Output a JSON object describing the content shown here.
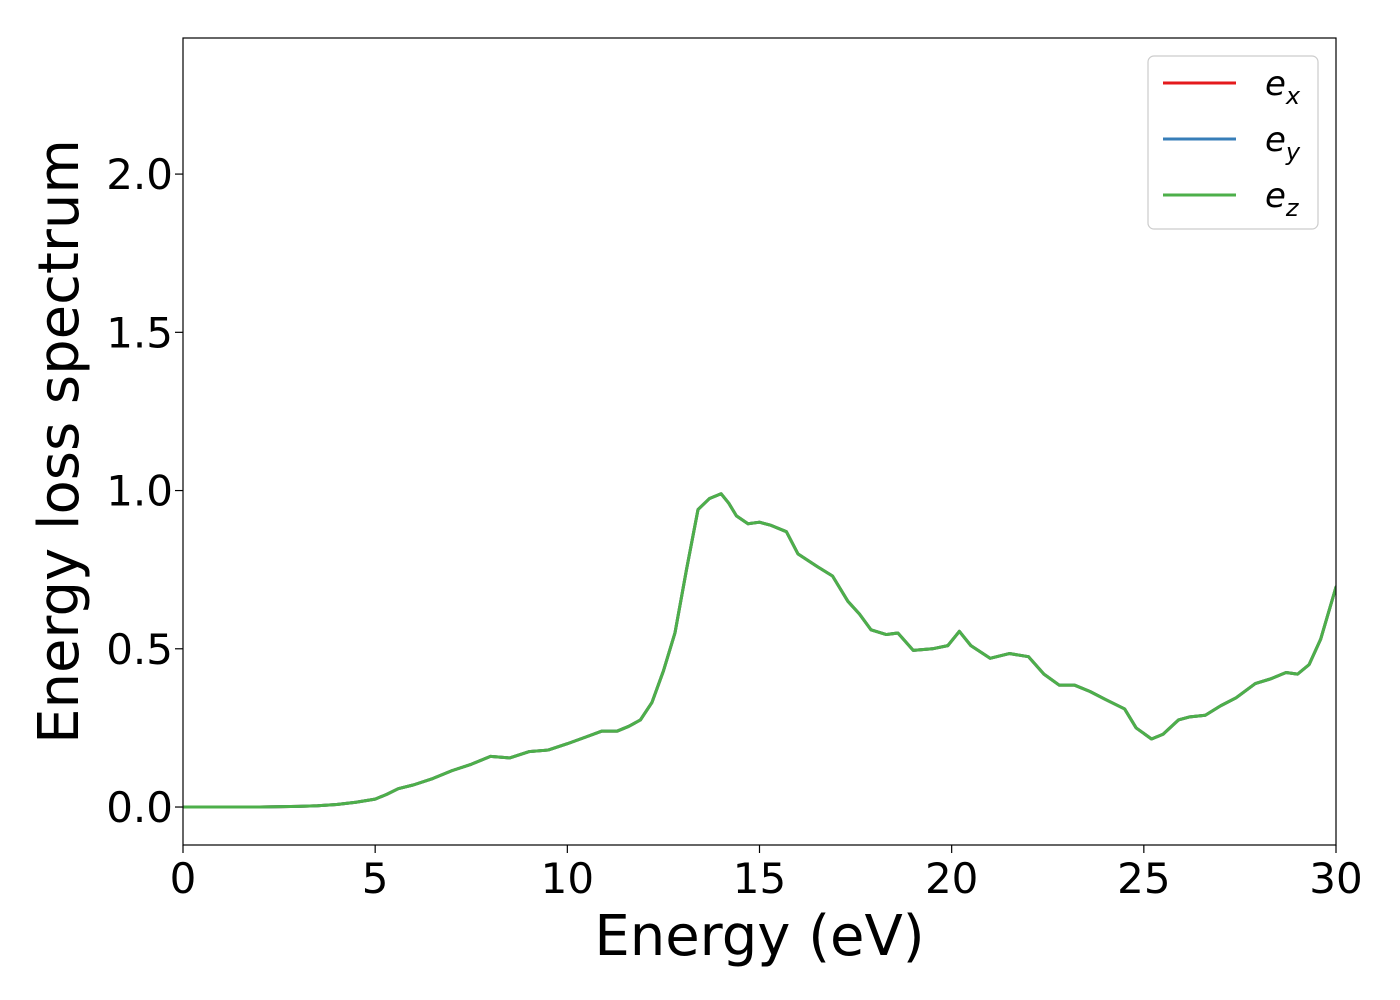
{
  "chart_data": {
    "type": "line",
    "title": "",
    "xlabel": "Energy (eV)",
    "ylabel": "Energy loss spectrum",
    "xlim": [
      0,
      30
    ],
    "ylim": [
      -0.12,
      2.43
    ],
    "xticks": [
      0,
      5,
      10,
      15,
      20,
      25,
      30
    ],
    "xtick_labels": [
      "0",
      "5",
      "10",
      "15",
      "20",
      "25",
      "30"
    ],
    "yticks": [
      0.0,
      0.5,
      1.0,
      1.5,
      2.0
    ],
    "ytick_labels": [
      "0.0",
      "0.5",
      "1.0",
      "1.5",
      "2.0"
    ],
    "grid": false,
    "legend_position": "top-right",
    "x": [
      0,
      1,
      2,
      3,
      3.5,
      4,
      4.5,
      5,
      5.3,
      5.6,
      6,
      6.5,
      7,
      7.5,
      8,
      8.5,
      9,
      9.5,
      10,
      10.5,
      10.9,
      11.3,
      11.6,
      11.9,
      12.2,
      12.5,
      12.8,
      13.1,
      13.4,
      13.7,
      14.0,
      14.2,
      14.4,
      14.7,
      15.0,
      15.3,
      15.7,
      16.0,
      16.5,
      16.9,
      17.3,
      17.6,
      17.9,
      18.3,
      18.6,
      19.0,
      19.5,
      19.9,
      20.2,
      20.5,
      21.0,
      21.5,
      22.0,
      22.4,
      22.8,
      23.2,
      23.6,
      24.0,
      24.5,
      24.8,
      25.2,
      25.5,
      25.9,
      26.2,
      26.6,
      27.0,
      27.4,
      27.9,
      28.3,
      28.7,
      29.0,
      29.3,
      29.6,
      30.0
    ],
    "series": [
      {
        "name": "e_x",
        "label_base": "e",
        "label_sub": "x",
        "color": "#e41a1c",
        "y": [
          0.0,
          0.0,
          0.0,
          0.002,
          0.004,
          0.008,
          0.015,
          0.025,
          0.04,
          0.058,
          0.07,
          0.09,
          0.115,
          0.135,
          0.16,
          0.155,
          0.175,
          0.18,
          0.2,
          0.222,
          0.24,
          0.24,
          0.255,
          0.275,
          0.33,
          0.43,
          0.55,
          0.75,
          0.94,
          0.975,
          0.99,
          0.96,
          0.92,
          0.895,
          0.9,
          0.89,
          0.87,
          0.8,
          0.76,
          0.73,
          0.65,
          0.61,
          0.56,
          0.545,
          0.55,
          0.495,
          0.5,
          0.51,
          0.555,
          0.51,
          0.47,
          0.485,
          0.475,
          0.42,
          0.385,
          0.385,
          0.365,
          0.34,
          0.31,
          0.25,
          0.215,
          0.23,
          0.275,
          0.285,
          0.29,
          0.32,
          0.345,
          0.39,
          0.405,
          0.425,
          0.42,
          0.45,
          0.53,
          0.695
        ]
      },
      {
        "name": "e_y",
        "label_base": "e",
        "label_sub": "y",
        "color": "#377eb8",
        "y": [
          0.0,
          0.0,
          0.0,
          0.002,
          0.004,
          0.008,
          0.015,
          0.025,
          0.04,
          0.058,
          0.07,
          0.09,
          0.115,
          0.135,
          0.16,
          0.155,
          0.175,
          0.18,
          0.2,
          0.222,
          0.24,
          0.24,
          0.255,
          0.275,
          0.33,
          0.43,
          0.55,
          0.75,
          0.94,
          0.975,
          0.99,
          0.96,
          0.92,
          0.895,
          0.9,
          0.89,
          0.87,
          0.8,
          0.76,
          0.73,
          0.65,
          0.61,
          0.56,
          0.545,
          0.55,
          0.495,
          0.5,
          0.51,
          0.555,
          0.51,
          0.47,
          0.485,
          0.475,
          0.42,
          0.385,
          0.385,
          0.365,
          0.34,
          0.31,
          0.25,
          0.215,
          0.23,
          0.275,
          0.285,
          0.29,
          0.32,
          0.345,
          0.39,
          0.405,
          0.425,
          0.42,
          0.45,
          0.53,
          0.695
        ]
      },
      {
        "name": "e_z",
        "label_base": "e",
        "label_sub": "z",
        "color": "#4daf4a",
        "y": [
          0.0,
          0.0,
          0.0,
          0.002,
          0.004,
          0.008,
          0.015,
          0.025,
          0.04,
          0.058,
          0.07,
          0.09,
          0.115,
          0.135,
          0.16,
          0.155,
          0.175,
          0.18,
          0.2,
          0.222,
          0.24,
          0.24,
          0.255,
          0.275,
          0.33,
          0.43,
          0.55,
          0.75,
          0.94,
          0.975,
          0.99,
          0.96,
          0.92,
          0.895,
          0.9,
          0.89,
          0.87,
          0.8,
          0.76,
          0.73,
          0.65,
          0.61,
          0.56,
          0.545,
          0.55,
          0.495,
          0.5,
          0.51,
          0.555,
          0.51,
          0.47,
          0.485,
          0.475,
          0.42,
          0.385,
          0.385,
          0.365,
          0.34,
          0.31,
          0.25,
          0.215,
          0.23,
          0.275,
          0.285,
          0.29,
          0.32,
          0.345,
          0.39,
          0.405,
          0.425,
          0.42,
          0.45,
          0.53,
          0.695
        ]
      }
    ]
  }
}
